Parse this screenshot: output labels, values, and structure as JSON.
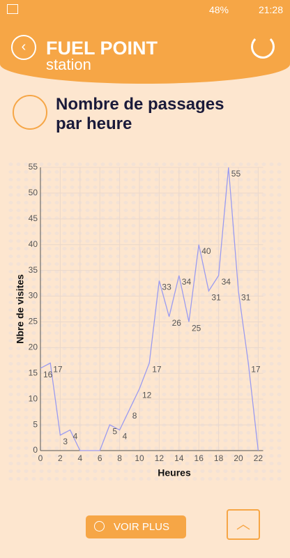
{
  "status": {
    "battery": "48%",
    "time": "21:28"
  },
  "header": {
    "brand": "FUEL POINT",
    "subtitle": "station"
  },
  "section": {
    "title": "Nombre de passages par heure"
  },
  "chart_data": {
    "type": "line",
    "x": [
      0,
      1,
      2,
      3,
      4,
      5,
      6,
      7,
      8,
      9,
      10,
      11,
      12,
      13,
      14,
      15,
      16,
      17,
      18,
      19,
      20,
      21,
      22
    ],
    "series": [
      {
        "name": "Nbre de visites",
        "color": "#9b9bf0",
        "values": [
          16,
          17,
          3,
          4,
          0,
          0,
          0,
          5,
          4,
          8,
          12,
          17,
          33,
          26,
          34,
          25,
          40,
          31,
          34,
          55,
          31,
          17,
          0
        ]
      }
    ],
    "xlabel": "Heures",
    "ylabel": "Nbre de visites",
    "xlim": [
      0,
      22.5
    ],
    "xticks": [
      0,
      2,
      4,
      6,
      8,
      10,
      12,
      14,
      16,
      18,
      20,
      22
    ],
    "ylim": [
      0,
      55
    ],
    "yticks": [
      0,
      5,
      10,
      15,
      20,
      25,
      30,
      35,
      40,
      45,
      50,
      55
    ],
    "grid": true
  },
  "button": {
    "label": "VOIR PLUS"
  }
}
